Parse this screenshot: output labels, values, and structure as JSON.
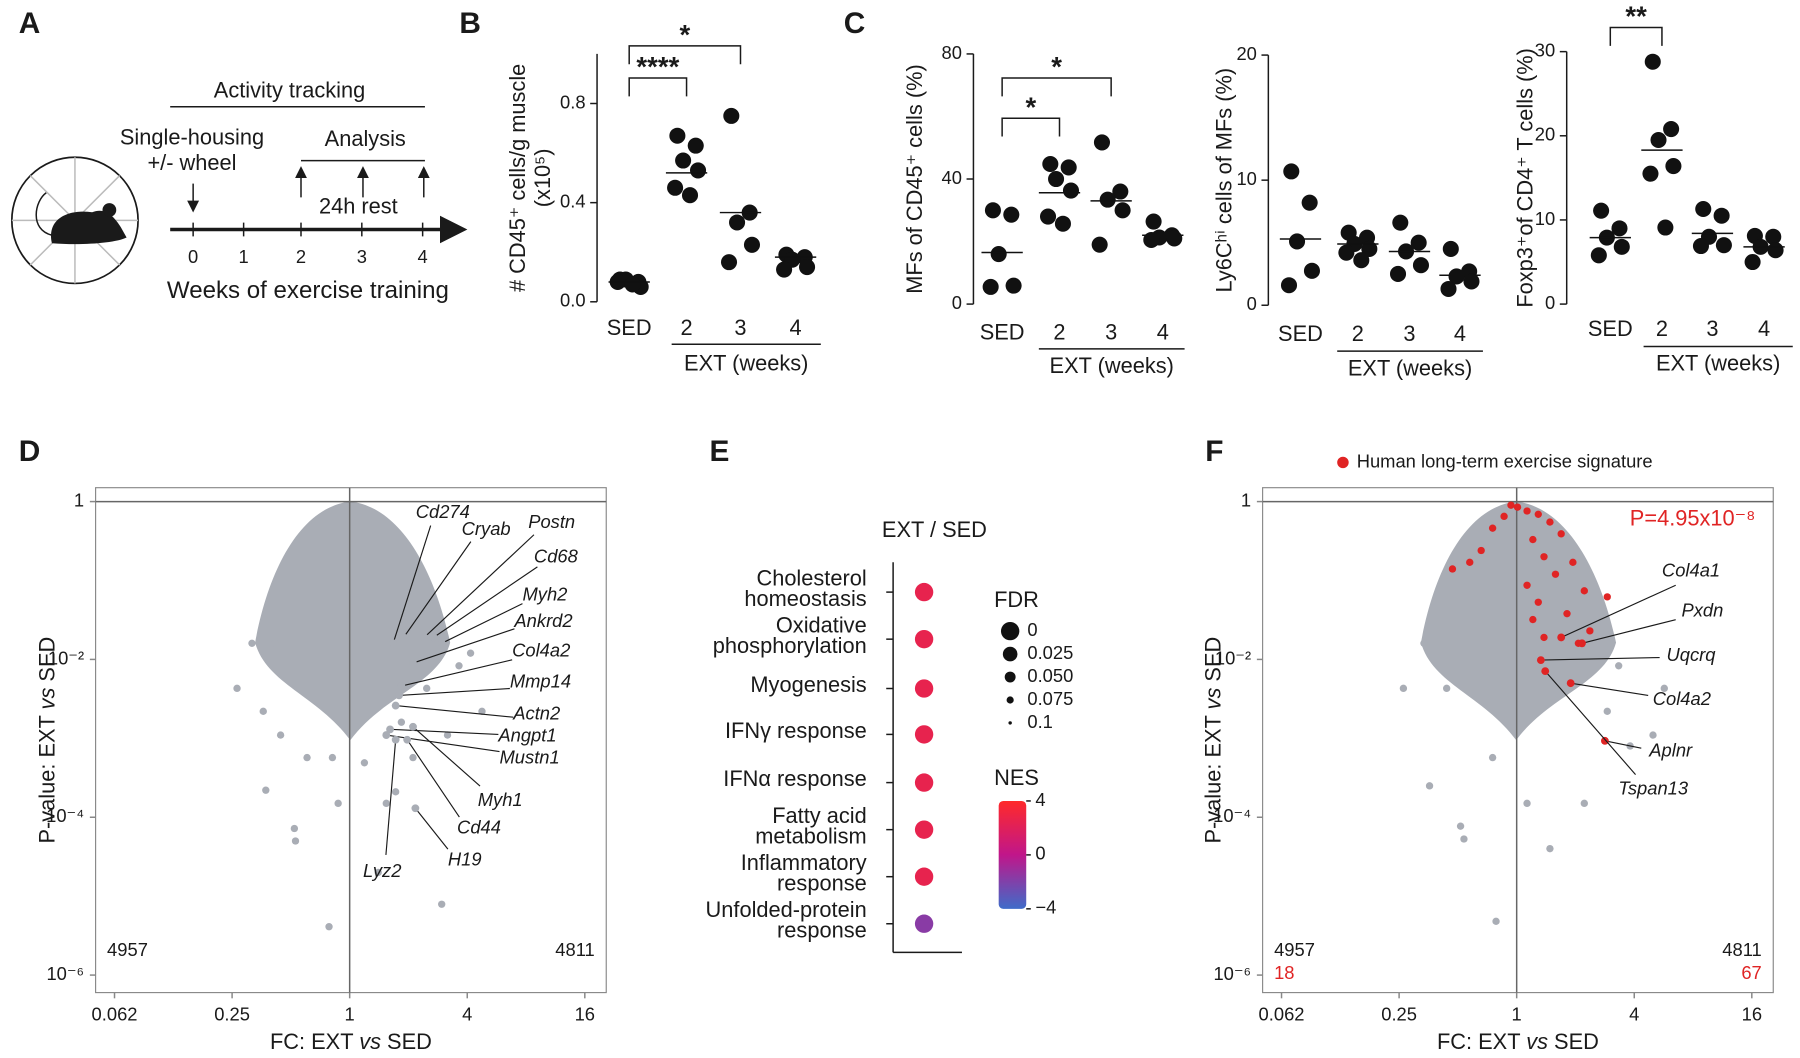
{
  "panel_labels": [
    "A",
    "B",
    "C",
    "D",
    "E",
    "F"
  ],
  "panel_a": {
    "tracking": "Activity tracking",
    "housing": [
      "Single-housing",
      "+/- wheel"
    ],
    "analysis": "Analysis",
    "rest": "24h rest",
    "ticks": [
      "0",
      "1",
      "2",
      "3",
      "4"
    ],
    "xlabel": "Weeks of exercise training"
  },
  "chart_data": [
    {
      "type": "dot",
      "ylabel": [
        "# CD45⁺ cells/g muscle",
        "(x10⁵)"
      ],
      "categories": [
        "SED",
        "2",
        "3",
        "4"
      ],
      "group_label": "EXT (weeks)",
      "color": "#111111",
      "values": [
        [
          0.09,
          0.08,
          0.09,
          0.06,
          0.08,
          0.07
        ],
        [
          0.67,
          0.63,
          0.57,
          0.53,
          0.46,
          0.43
        ],
        [
          0.75,
          0.36,
          0.32,
          0.23,
          0.16
        ],
        [
          0.19,
          0.18,
          0.17,
          0.14,
          0.13
        ]
      ],
      "means": [
        0.08,
        0.52,
        0.36,
        0.18
      ],
      "ylim": [
        0,
        1.0
      ],
      "yticks": [
        {
          "value": 0,
          "label": "0.0"
        },
        0.4,
        0.8
      ],
      "brackets": [
        {
          "text": "****",
          "from": 0,
          "to": 1
        },
        {
          "text": "*",
          "from": 0,
          "to": 2
        }
      ]
    },
    {
      "type": "dot",
      "ylabel": [
        "MFs of CD45⁺ cells (%)"
      ],
      "categories": [
        "SED",
        "2",
        "3",
        "4"
      ],
      "group_label": "EXT (weeks)",
      "color": "#111111",
      "values": [
        [
          30,
          28.6,
          16,
          5.9,
          5.5
        ],
        [
          44.8,
          43.7,
          40,
          36.3,
          28,
          25.7
        ],
        [
          51.7,
          36,
          33.4,
          30,
          19
        ],
        [
          26.4,
          22,
          21.3,
          21,
          20.5
        ]
      ],
      "means": [
        16.5,
        35.6,
        33,
        22
      ],
      "ylim": [
        0,
        80
      ],
      "yticks": [
        0,
        40,
        80
      ],
      "brackets": [
        {
          "text": "*",
          "from": 0,
          "to": 1
        },
        {
          "text": "*",
          "from": 0,
          "to": 2
        }
      ]
    },
    {
      "type": "dot",
      "ylabel": [
        "Ly6Cʰⁱ cells of MFs (%)"
      ],
      "categories": [
        "SED",
        "2",
        "3",
        "4"
      ],
      "group_label": "EXT (weeks)",
      "color": "#111111",
      "values": [
        [
          10.7,
          8.2,
          5.1,
          2.75,
          1.6
        ],
        [
          5.8,
          5.4,
          4.9,
          4.5,
          4.2,
          3.6
        ],
        [
          6.6,
          5,
          4.3,
          3.2,
          2.5
        ],
        [
          4.5,
          2.7,
          2.3,
          1.9,
          1.3
        ]
      ],
      "means": [
        5.3,
        4.9,
        4.3,
        2.4
      ],
      "ylim": [
        0,
        20
      ],
      "yticks": [
        0,
        10,
        20
      ],
      "brackets": []
    },
    {
      "type": "dot",
      "ylabel": [
        "Foxp3⁺of CD4⁺ T cells (%)"
      ],
      "categories": [
        "SED",
        "2",
        "3",
        "4"
      ],
      "group_label": "EXT (weeks)",
      "color": "#111111",
      "values": [
        [
          11.1,
          9,
          7.9,
          6.8,
          5.8
        ],
        [
          28.8,
          20.8,
          19.5,
          16.4,
          15.5,
          9.1
        ],
        [
          11.3,
          10.5,
          8,
          7,
          6.9
        ],
        [
          8.1,
          8,
          6.8,
          6.4,
          5
        ]
      ],
      "means": [
        7.9,
        18.3,
        8.4,
        6.8
      ],
      "ylim": [
        0,
        30
      ],
      "yticks": [
        0,
        10,
        20,
        30
      ],
      "brackets": [
        {
          "text": "**",
          "from": 0,
          "to": 1
        }
      ]
    },
    {
      "type": "volcano",
      "xlabel": [
        {
          "text": "FC: EXT "
        },
        {
          "text": "vs",
          "italic": true
        },
        {
          "text": " SED"
        }
      ],
      "ylabel": [
        {
          "text": "P-value: EXT "
        },
        {
          "text": "vs",
          "italic": true
        },
        {
          "text": " SED"
        }
      ],
      "xscale": "log",
      "yscale": "log",
      "xlim": [
        0.05,
        20.6
      ],
      "ylim": [
        6e-07,
        1.5
      ],
      "xticks": [
        {
          "value": 0.0625,
          "label": "0.062"
        },
        0.25,
        1,
        4,
        16
      ],
      "yticks": [
        1,
        {
          "value": 0.01,
          "label": "10⁻²"
        },
        {
          "value": 0.0001,
          "label": "10⁻⁴"
        },
        {
          "value": 1e-06,
          "label": "10⁻⁶"
        }
      ],
      "ref_x": 1,
      "ref_y": 1,
      "color": "#a9adb5",
      "gene_color": "#a9adb5",
      "points": {
        "x": [
          0.265,
          0.372,
          0.521,
          0.528,
          0.784,
          2.96,
          1.19,
          1.84,
          2.48,
          1.54,
          1.72,
          0.361,
          0.443,
          0.605,
          0.816,
          2.11,
          3.63,
          4.76,
          3.17,
          0.414,
          0.316,
          1.4,
          0.873,
          4.16
        ],
        "y": [
          0.0043,
          0.00022,
          7.2e-05,
          5e-05,
          4.1e-06,
          7.9e-06,
          0.00049,
          0.0016,
          0.0043,
          0.00015,
          0.00021,
          0.0022,
          0.0011,
          0.00057,
          0.00057,
          0.00057,
          0.0083,
          0.0022,
          0.0011,
          0.016,
          0.016,
          2e-05,
          0.00015,
          0.012
        ]
      },
      "genes": {
        "names": [
          "Cd274",
          "Cryab",
          "Postn",
          "Cd68",
          "Myh2",
          "Ankrd2",
          "Col4a2",
          "Mmp14",
          "Actn2",
          "Angpt1",
          "Mustn1",
          "Myh1",
          "Cd44",
          "H19",
          "Lyz2"
        ],
        "x": [
          1.67,
          1.89,
          2.41,
          2.69,
          2.96,
          2.11,
          1.84,
          1.79,
          1.72,
          1.61,
          1.54,
          2.11,
          1.97,
          2.17,
          1.72
        ],
        "y": [
          0.016,
          0.019,
          0.019,
          0.019,
          0.016,
          0.009,
          0.0046,
          0.0035,
          0.0026,
          0.0013,
          0.0011,
          0.0014,
          0.00096,
          0.00013,
          0.00096
        ]
      },
      "count_down": 4957,
      "count_up": 4811
    },
    {
      "type": "bubble_column",
      "title": "EXT / SED",
      "pathways": [
        [
          "Cholesterol",
          "homeostasis"
        ],
        [
          "Oxidative",
          "phosphorylation"
        ],
        [
          "Myogenesis"
        ],
        [
          "IFNγ response"
        ],
        [
          "IFNα response"
        ],
        [
          "Fatty acid",
          "metabolism"
        ],
        [
          "Inflammatory",
          "response"
        ],
        [
          "Unfolded-protein",
          "response"
        ]
      ],
      "nes": [
        2.5,
        2.5,
        2.5,
        2.5,
        2.5,
        2.5,
        2.5,
        -1.7
      ],
      "fdr": [
        0,
        0,
        0,
        0,
        0,
        0,
        0,
        0
      ],
      "size_title": "FDR",
      "size_lim": [
        0,
        0.1
      ],
      "size_ticks": [
        0,
        0.025,
        {
          "value": 0.05,
          "label": "0.050"
        },
        0.075,
        0.1
      ],
      "color_title": "NES",
      "color_lim": [
        -4,
        4
      ],
      "color_ticks": [
        4,
        0,
        {
          "value": -4,
          "label": "−4"
        }
      ],
      "colorscale": [
        "#3f6cc9",
        "#c0168a",
        "#ff2a2a"
      ]
    },
    {
      "type": "volcano",
      "xlabel": [
        {
          "text": "FC: EXT "
        },
        {
          "text": "vs",
          "italic": true
        },
        {
          "text": " SED"
        }
      ],
      "ylabel": [
        {
          "text": "P-value: EXT "
        },
        {
          "text": "vs",
          "italic": true
        },
        {
          "text": " SED"
        }
      ],
      "xscale": "log",
      "yscale": "log",
      "xlim": [
        0.05,
        20.6
      ],
      "ylim": [
        6e-07,
        1.5
      ],
      "xticks": [
        {
          "value": 0.0625,
          "label": "0.062"
        },
        0.25,
        1,
        4,
        16
      ],
      "yticks": [
        1,
        {
          "value": 0.01,
          "label": "10⁻²"
        },
        {
          "value": 0.0001,
          "label": "10⁻⁴"
        },
        {
          "value": 1e-06,
          "label": "10⁻⁶"
        }
      ],
      "ref_x": 1,
      "ref_y": 1,
      "color": "#a9adb5",
      "gene_color": "#e02424",
      "points": {
        "x": [
          0.263,
          0.358,
          0.516,
          0.537,
          0.784,
          4.99,
          3.81,
          2.22,
          1.13,
          1.48,
          2.91,
          0.335,
          0.438,
          0.753,
          5.7,
          3.33
        ],
        "y": [
          0.0043,
          0.00025,
          7.7e-05,
          5.3e-05,
          4.8e-06,
          0.0011,
          0.0008,
          0.00015,
          0.00015,
          4e-05,
          0.0022,
          0.016,
          0.0043,
          0.00057,
          0.0043,
          0.0083
        ]
      },
      "signature": {
        "name": "Human long-term exercise signature",
        "color": "#e02424",
        "x": [
          0.935,
          1.01,
          1.13,
          1.29,
          0.862,
          1.48,
          0.753,
          1.69,
          1.21,
          0.658,
          1.38,
          1.94,
          1.58,
          1.13,
          2.22,
          1.29,
          1.81,
          2.37,
          1.38,
          2.07,
          1.21,
          0.575,
          0.469,
          2.91
        ],
        "y": [
          0.9,
          0.85,
          0.76,
          0.69,
          0.65,
          0.55,
          0.46,
          0.39,
          0.33,
          0.24,
          0.2,
          0.17,
          0.12,
          0.087,
          0.074,
          0.053,
          0.038,
          0.023,
          0.019,
          0.016,
          0.032,
          0.17,
          0.14,
          0.062
        ],
        "count_down": 18,
        "count_up": 67,
        "p_value_label": "P=4.95x10⁻⁸"
      },
      "genes": {
        "names": [
          "Col4a1",
          "Pxdn",
          "Uqcrq",
          "Col4a2",
          "Aplnr",
          "Tspan13"
        ],
        "x": [
          1.69,
          2.16,
          1.33,
          1.89,
          2.83,
          1.4
        ],
        "y": [
          0.019,
          0.016,
          0.0098,
          0.005,
          0.00093,
          0.0071
        ]
      },
      "count_down": 4957,
      "count_up": 4811
    }
  ]
}
